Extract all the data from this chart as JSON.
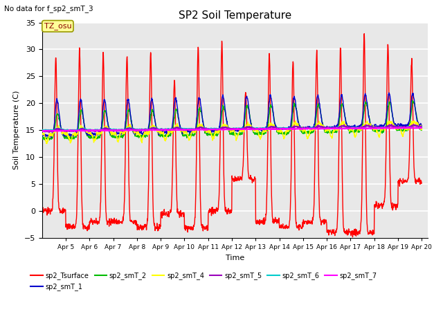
{
  "title": "SP2 Soil Temperature",
  "subtitle": "No data for f_sp2_smT_3",
  "xlabel": "Time",
  "ylabel": "Soil Temperature (C)",
  "ylim": [
    -5,
    35
  ],
  "tz_label": "TZ_osu",
  "x_ticks": [
    "Apr 5",
    "Apr 6",
    "Apr 7",
    "Apr 8",
    "Apr 9",
    "Apr 10",
    "Apr 11",
    "Apr 12",
    "Apr 13",
    "Apr 14",
    "Apr 15",
    "Apr 16",
    "Apr 17",
    "Apr 18",
    "Apr 19",
    "Apr 20"
  ],
  "legend_entries": [
    {
      "label": "sp2_Tsurface",
      "color": "#FF0000"
    },
    {
      "label": "sp2_smT_1",
      "color": "#0000CC"
    },
    {
      "label": "sp2_smT_2",
      "color": "#00BB00"
    },
    {
      "label": "sp2_smT_4",
      "color": "#FFFF00"
    },
    {
      "label": "sp2_smT_5",
      "color": "#9900BB"
    },
    {
      "label": "sp2_smT_6",
      "color": "#00CCCC"
    },
    {
      "label": "sp2_smT_7",
      "color": "#FF00FF"
    }
  ],
  "bg_color": "#E8E8E8",
  "grid_color": "#FFFFFF",
  "linewidth": 1.0
}
